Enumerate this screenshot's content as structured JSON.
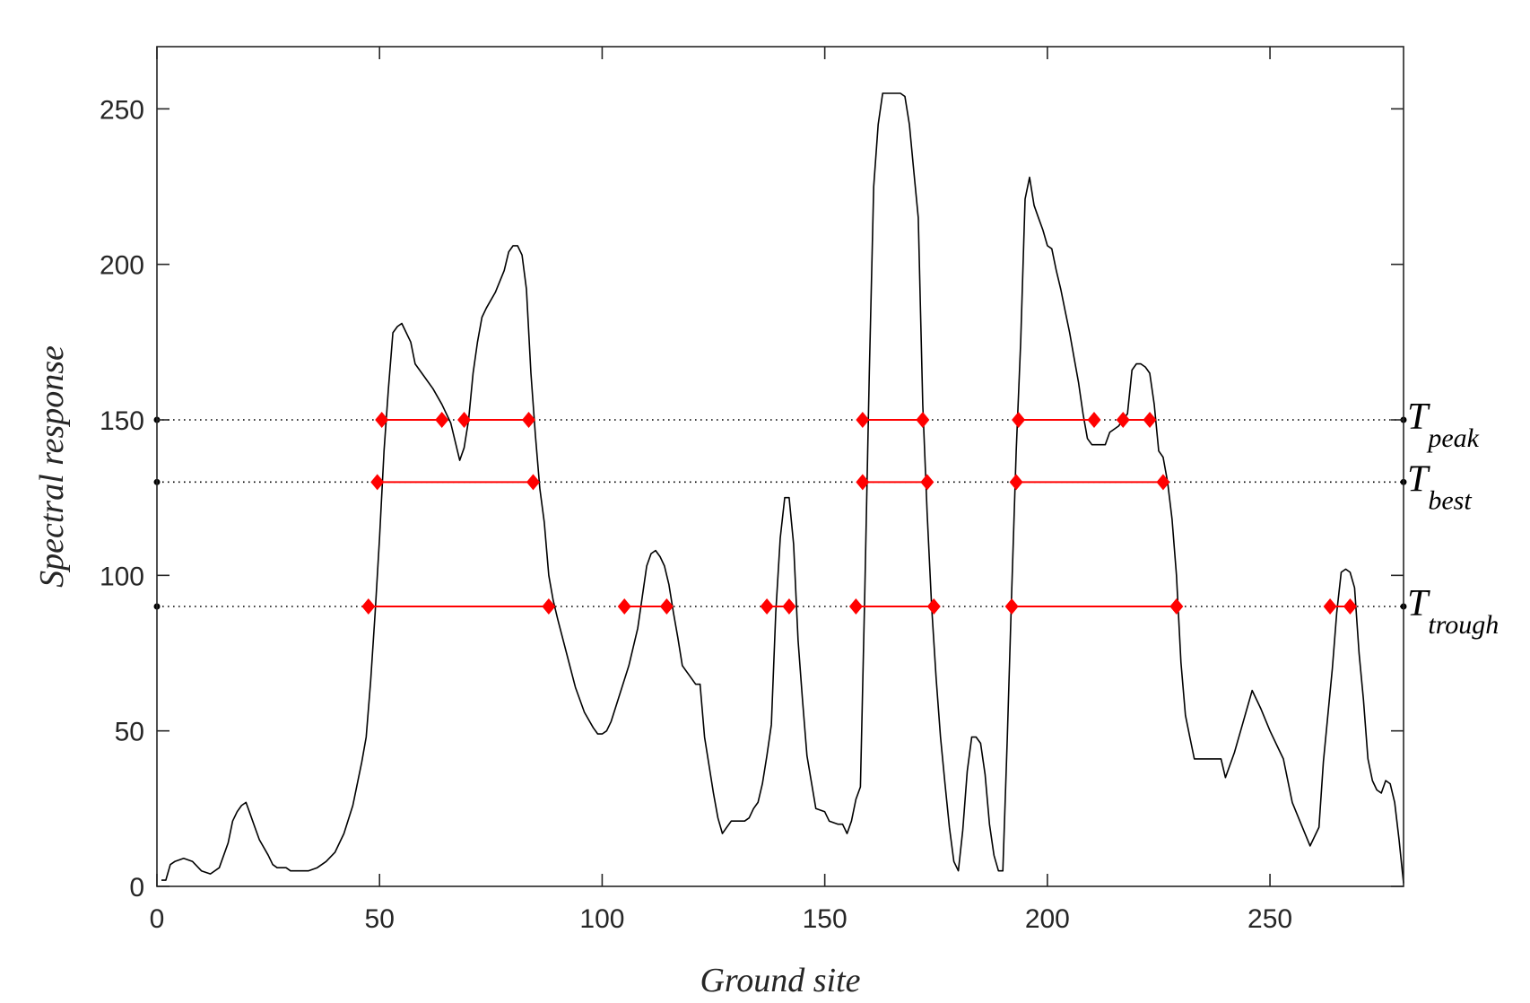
{
  "chart_data": {
    "type": "line",
    "title": "",
    "xlabel": "Ground site",
    "ylabel": "Spectral response",
    "xlim": [
      0,
      280
    ],
    "ylim": [
      0,
      270
    ],
    "xticks": [
      0,
      50,
      100,
      150,
      200,
      250
    ],
    "yticks": [
      0,
      50,
      100,
      150,
      200,
      250
    ],
    "grid": false,
    "series": [
      {
        "line_color": "#000000",
        "points": [
          [
            1,
            2
          ],
          [
            2,
            2
          ],
          [
            3,
            7
          ],
          [
            4,
            8
          ],
          [
            6,
            9
          ],
          [
            8,
            8
          ],
          [
            10,
            5
          ],
          [
            12,
            4
          ],
          [
            14,
            6
          ],
          [
            16,
            14
          ],
          [
            17,
            21
          ],
          [
            18,
            24
          ],
          [
            19,
            26
          ],
          [
            20,
            27
          ],
          [
            21,
            23
          ],
          [
            22,
            19
          ],
          [
            23,
            15
          ],
          [
            25,
            10
          ],
          [
            26,
            7
          ],
          [
            27,
            6
          ],
          [
            29,
            6
          ],
          [
            30,
            5
          ],
          [
            32,
            5
          ],
          [
            34,
            5
          ],
          [
            36,
            6
          ],
          [
            38,
            8
          ],
          [
            40,
            11
          ],
          [
            42,
            17
          ],
          [
            44,
            26
          ],
          [
            46,
            40
          ],
          [
            47,
            48
          ],
          [
            48,
            66
          ],
          [
            49,
            88
          ],
          [
            50,
            112
          ],
          [
            51,
            140
          ],
          [
            52,
            160
          ],
          [
            53,
            178
          ],
          [
            54,
            180
          ],
          [
            55,
            181
          ],
          [
            56,
            178
          ],
          [
            57,
            175
          ],
          [
            58,
            168
          ],
          [
            60,
            164
          ],
          [
            62,
            160
          ],
          [
            64,
            155
          ],
          [
            66,
            149
          ],
          [
            67,
            143
          ],
          [
            68,
            137
          ],
          [
            69,
            141
          ],
          [
            70,
            150
          ],
          [
            71,
            165
          ],
          [
            72,
            175
          ],
          [
            73,
            183
          ],
          [
            74,
            186
          ],
          [
            76,
            191
          ],
          [
            78,
            198
          ],
          [
            79,
            204
          ],
          [
            80,
            206
          ],
          [
            81,
            206
          ],
          [
            82,
            203
          ],
          [
            83,
            192
          ],
          [
            84,
            165
          ],
          [
            85,
            145
          ],
          [
            86,
            128
          ],
          [
            87,
            117
          ],
          [
            88,
            100
          ],
          [
            89,
            92
          ],
          [
            90,
            86
          ],
          [
            92,
            75
          ],
          [
            94,
            64
          ],
          [
            96,
            56
          ],
          [
            98,
            51
          ],
          [
            99,
            49
          ],
          [
            100,
            49
          ],
          [
            101,
            50
          ],
          [
            102,
            53
          ],
          [
            104,
            62
          ],
          [
            106,
            71
          ],
          [
            108,
            83
          ],
          [
            109,
            93
          ],
          [
            110,
            103
          ],
          [
            111,
            107
          ],
          [
            112,
            108
          ],
          [
            113,
            106
          ],
          [
            114,
            103
          ],
          [
            115,
            97
          ],
          [
            116,
            88
          ],
          [
            117,
            80
          ],
          [
            118,
            71
          ],
          [
            120,
            67
          ],
          [
            121,
            65
          ],
          [
            122,
            65
          ],
          [
            123,
            48
          ],
          [
            125,
            30
          ],
          [
            126,
            22
          ],
          [
            127,
            17
          ],
          [
            128,
            19
          ],
          [
            129,
            21
          ],
          [
            131,
            21
          ],
          [
            132,
            21
          ],
          [
            133,
            22
          ],
          [
            134,
            25
          ],
          [
            135,
            27
          ],
          [
            136,
            33
          ],
          [
            137,
            42
          ],
          [
            138,
            52
          ],
          [
            139,
            88
          ],
          [
            140,
            112
          ],
          [
            141,
            125
          ],
          [
            142,
            125
          ],
          [
            143,
            110
          ],
          [
            144,
            79
          ],
          [
            145,
            60
          ],
          [
            146,
            42
          ],
          [
            148,
            25
          ],
          [
            150,
            24
          ],
          [
            151,
            21
          ],
          [
            153,
            20
          ],
          [
            154,
            20
          ],
          [
            155,
            17
          ],
          [
            156,
            21
          ],
          [
            157,
            28
          ],
          [
            158,
            32
          ],
          [
            159,
            95
          ],
          [
            160,
            165
          ],
          [
            161,
            225
          ],
          [
            162,
            245
          ],
          [
            163,
            255
          ],
          [
            165,
            255
          ],
          [
            167,
            255
          ],
          [
            168,
            254
          ],
          [
            169,
            245
          ],
          [
            170,
            230
          ],
          [
            171,
            215
          ],
          [
            172,
            155
          ],
          [
            173,
            120
          ],
          [
            174,
            90
          ],
          [
            175,
            67
          ],
          [
            176,
            48
          ],
          [
            177,
            33
          ],
          [
            178,
            19
          ],
          [
            179,
            8
          ],
          [
            180,
            5
          ],
          [
            181,
            18
          ],
          [
            182,
            37
          ],
          [
            183,
            48
          ],
          [
            184,
            48
          ],
          [
            185,
            46
          ],
          [
            186,
            36
          ],
          [
            187,
            20
          ],
          [
            188,
            10
          ],
          [
            189,
            5
          ],
          [
            190,
            5
          ],
          [
            191,
            48
          ],
          [
            192,
            95
          ],
          [
            193,
            140
          ],
          [
            194,
            175
          ],
          [
            195,
            221
          ],
          [
            196,
            228
          ],
          [
            197,
            219
          ],
          [
            198,
            215
          ],
          [
            199,
            211
          ],
          [
            200,
            206
          ],
          [
            201,
            205
          ],
          [
            202,
            198
          ],
          [
            203,
            192
          ],
          [
            204,
            185
          ],
          [
            205,
            178
          ],
          [
            206,
            170
          ],
          [
            207,
            162
          ],
          [
            208,
            152
          ],
          [
            209,
            144
          ],
          [
            210,
            142
          ],
          [
            212,
            142
          ],
          [
            213,
            142
          ],
          [
            214,
            146
          ],
          [
            216,
            148
          ],
          [
            218,
            152
          ],
          [
            219,
            166
          ],
          [
            220,
            168
          ],
          [
            221,
            168
          ],
          [
            222,
            167
          ],
          [
            223,
            165
          ],
          [
            224,
            155
          ],
          [
            225,
            140
          ],
          [
            226,
            138
          ],
          [
            227,
            130
          ],
          [
            228,
            118
          ],
          [
            229,
            100
          ],
          [
            230,
            72
          ],
          [
            231,
            55
          ],
          [
            232,
            48
          ],
          [
            233,
            41
          ],
          [
            235,
            41
          ],
          [
            237,
            41
          ],
          [
            239,
            41
          ],
          [
            240,
            35
          ],
          [
            242,
            43
          ],
          [
            244,
            53
          ],
          [
            246,
            63
          ],
          [
            248,
            57
          ],
          [
            250,
            50
          ],
          [
            252,
            44
          ],
          [
            253,
            41
          ],
          [
            255,
            27
          ],
          [
            257,
            20
          ],
          [
            259,
            13
          ],
          [
            261,
            19
          ],
          [
            262,
            40
          ],
          [
            264,
            70
          ],
          [
            265,
            88
          ],
          [
            266,
            101
          ],
          [
            267,
            102
          ],
          [
            268,
            101
          ],
          [
            269,
            96
          ],
          [
            270,
            75
          ],
          [
            271,
            60
          ],
          [
            272,
            41
          ],
          [
            273,
            34
          ],
          [
            274,
            31
          ],
          [
            275,
            30
          ],
          [
            276,
            34
          ],
          [
            277,
            33
          ],
          [
            278,
            27
          ],
          [
            279,
            15
          ],
          [
            280,
            1
          ]
        ]
      }
    ],
    "thresholds": [
      {
        "label_main": "T",
        "label_sub": "peak",
        "y": 150,
        "crossings": [
          [
            50.5,
            64.0
          ],
          [
            69.0,
            83.5
          ],
          [
            158.5,
            172.0
          ],
          [
            193.5,
            210.5
          ],
          [
            217.0,
            223.0
          ]
        ]
      },
      {
        "label_main": "T",
        "label_sub": "best",
        "y": 130,
        "crossings": [
          [
            49.5,
            84.5
          ],
          [
            158.5,
            173.0
          ],
          [
            193.0,
            226.0
          ]
        ]
      },
      {
        "label_main": "T",
        "label_sub": "trough",
        "y": 90,
        "crossings": [
          [
            47.5,
            88.0
          ],
          [
            105.0,
            114.5
          ],
          [
            137.0,
            142.0
          ],
          [
            157.0,
            174.5
          ],
          [
            192.0,
            229.0
          ],
          [
            263.5,
            268.0
          ]
        ]
      }
    ],
    "colors": {
      "curve": "#000000",
      "marker": "#ff0000",
      "segment": "#ff0000",
      "threshold_line": "#000000",
      "axis": "#262626"
    }
  }
}
